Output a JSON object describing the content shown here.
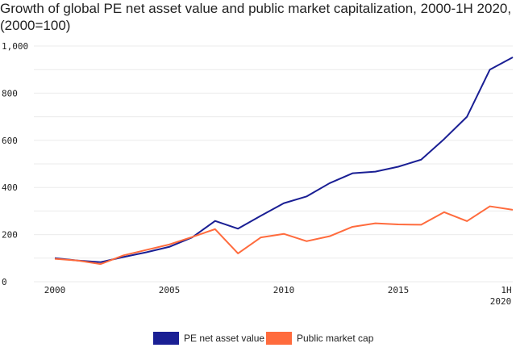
{
  "chart_data": {
    "type": "line",
    "title": "Growth of global PE net asset value and public market capitalization, 2000-1H 2020, (2000=100)",
    "xlabel": "",
    "ylabel": "",
    "ylim": [
      0,
      1000
    ],
    "yticks": [
      "0",
      "200",
      "400",
      "600",
      "800",
      "1,000"
    ],
    "ytick_values": [
      0,
      200,
      400,
      600,
      800,
      1000
    ],
    "xticks": [
      "2000",
      "2005",
      "2010",
      "2015",
      "1H 2020"
    ],
    "xtick_values": [
      2000,
      2005,
      2010,
      2015,
      2020
    ],
    "grid": true,
    "legend": "bottom",
    "x": [
      2000,
      2001,
      2002,
      2003,
      2004,
      2005,
      2006,
      2007,
      2008,
      2009,
      2010,
      2011,
      2012,
      2013,
      2014,
      2015,
      2016,
      2017,
      2018,
      2019,
      2020
    ],
    "series": [
      {
        "name": "PE net asset value",
        "color": "#1a1f94",
        "values": [
          100,
          90,
          83,
          105,
          125,
          148,
          188,
          258,
          225,
          280,
          333,
          362,
          418,
          460,
          467,
          488,
          518,
          605,
          700,
          900,
          952
        ]
      },
      {
        "name": "Public market cap",
        "color": "#ff6b3d",
        "values": [
          97,
          90,
          75,
          112,
          135,
          158,
          190,
          223,
          120,
          188,
          203,
          172,
          193,
          233,
          248,
          243,
          242,
          295,
          257,
          320,
          305
        ]
      }
    ]
  }
}
